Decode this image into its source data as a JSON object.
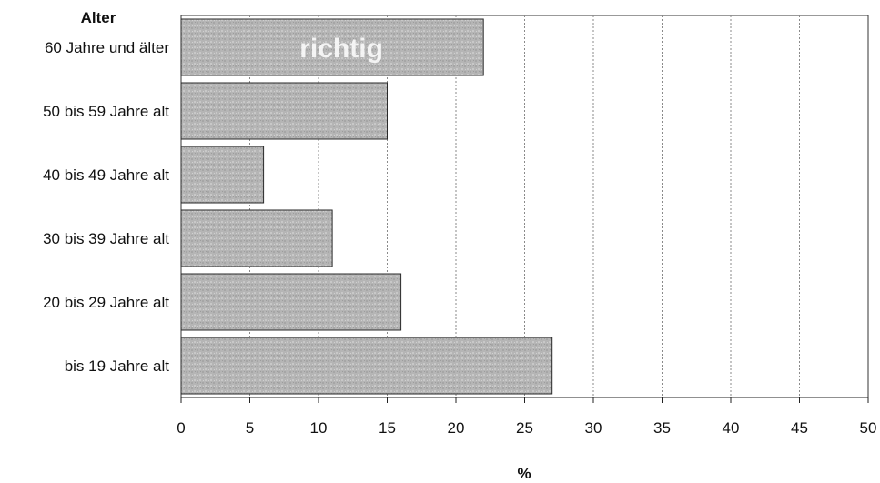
{
  "chart_data": {
    "type": "bar",
    "orientation": "horizontal",
    "categories": [
      "60 Jahre und älter",
      "50 bis 59 Jahre alt",
      "40 bis 49 Jahre alt",
      "30 bis 39 Jahre alt",
      "20 bis 29 Jahre alt",
      "bis 19 Jahre alt"
    ],
    "values": [
      22,
      15,
      6,
      11,
      16,
      27
    ],
    "xlabel": "%",
    "ylabel": "Alter",
    "xlim": [
      0,
      50
    ],
    "xticks": [
      0,
      5,
      10,
      15,
      20,
      25,
      30,
      35,
      40,
      45,
      50
    ],
    "annotation": "richtig",
    "grid": true,
    "bar_color": "#b3b3b3"
  }
}
